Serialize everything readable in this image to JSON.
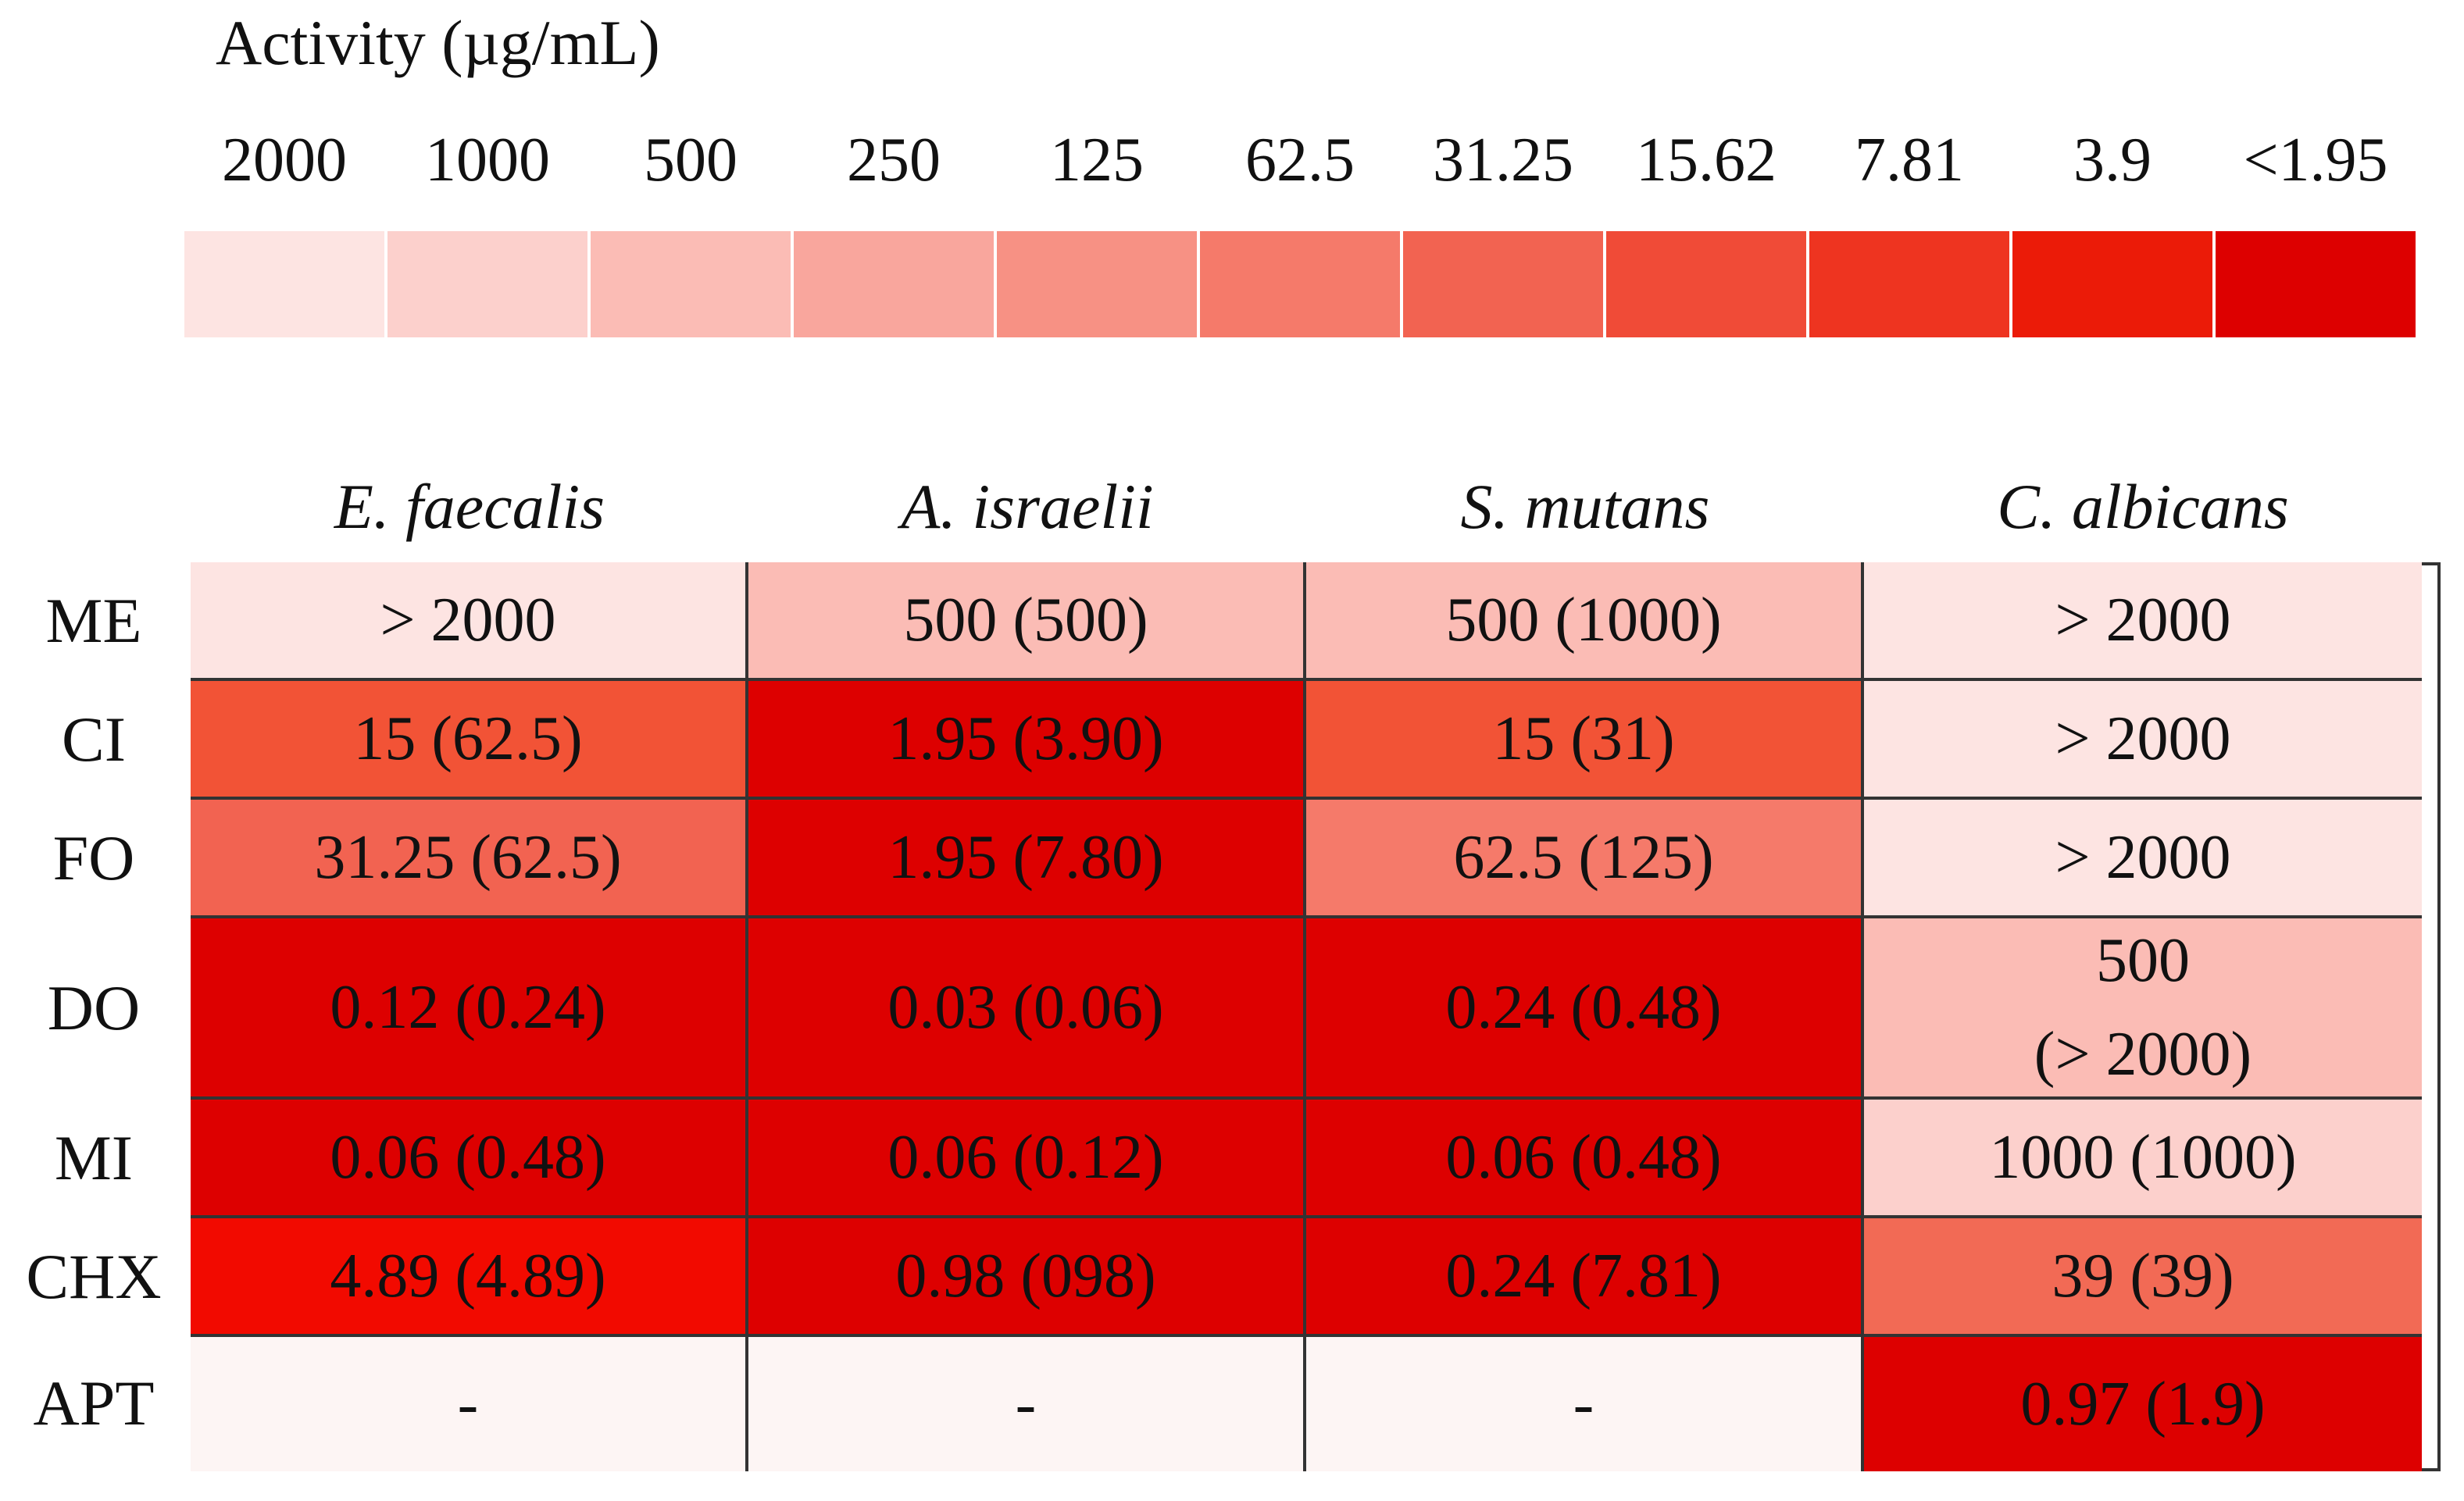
{
  "chart_data": {
    "type": "heatmap",
    "legend": {
      "title": "Activity (µg/mL)",
      "labels": [
        "2000",
        "1000",
        "500",
        "250",
        "125",
        "62.5",
        "31.25",
        "15.62",
        "7.81",
        "3.9",
        "<1.95"
      ],
      "colors": [
        "#fde4e2",
        "#fcd0cc",
        "#fbbcb5",
        "#f9a69d",
        "#f79184",
        "#f57a6a",
        "#f26351",
        "#f04b37",
        "#ee3420",
        "#eb1b08",
        "#dd0000"
      ]
    },
    "columns": [
      "E. faecalis",
      "A. israelii",
      "S. mutans",
      "C. albicans"
    ],
    "rows": [
      "ME",
      "CI",
      "FO",
      "DO",
      "MI",
      "CHX",
      "APT"
    ],
    "cells": [
      [
        {
          "text": "> 2000",
          "color": "#fde4e2"
        },
        {
          "text": "500 (500)",
          "color": "#fbbcb5"
        },
        {
          "text": "500 (1000)",
          "color": "#fbbcb5"
        },
        {
          "text": "> 2000",
          "color": "#fde4e2"
        }
      ],
      [
        {
          "text": "15 (62.5)",
          "color": "#f25336"
        },
        {
          "text": "1.95 (3.90)",
          "color": "#dd0000"
        },
        {
          "text": "15 (31)",
          "color": "#f25336"
        },
        {
          "text": "> 2000",
          "color": "#fde4e2"
        }
      ],
      [
        {
          "text": "31.25 (62.5)",
          "color": "#f26351"
        },
        {
          "text": "1.95 (7.80)",
          "color": "#dd0000"
        },
        {
          "text": "62.5 (125)",
          "color": "#f57a6a"
        },
        {
          "text": "> 2000",
          "color": "#fde4e2"
        }
      ],
      [
        {
          "text": "0.12 (0.24)",
          "color": "#dd0000"
        },
        {
          "text": "0.03 (0.06)",
          "color": "#dd0000"
        },
        {
          "text": "0.24 (0.48)",
          "color": "#dd0000"
        },
        {
          "text": "500",
          "text2": "(> 2000)",
          "color": "#fbbcb5"
        }
      ],
      [
        {
          "text": "0.06 (0.48)",
          "color": "#dd0000"
        },
        {
          "text": "0.06 (0.12)",
          "color": "#dd0000"
        },
        {
          "text": "0.06 (0.48)",
          "color": "#dd0000"
        },
        {
          "text": "1000 (1000)",
          "color": "#fcd0cc"
        }
      ],
      [
        {
          "text": "4.89 (4.89)",
          "color": "#f20a00"
        },
        {
          "text": "0.98 (098)",
          "color": "#dd0000"
        },
        {
          "text": "0.24 (7.81)",
          "color": "#dd0000"
        },
        {
          "text": "39 (39)",
          "color": "#f26a55"
        }
      ],
      [
        {
          "text": "-",
          "color": "#fdf5f4"
        },
        {
          "text": "-",
          "color": "#fdf5f4"
        },
        {
          "text": "-",
          "color": "#fdf5f4"
        },
        {
          "text": "0.97 (1.9)",
          "color": "#dd0000"
        }
      ]
    ]
  }
}
